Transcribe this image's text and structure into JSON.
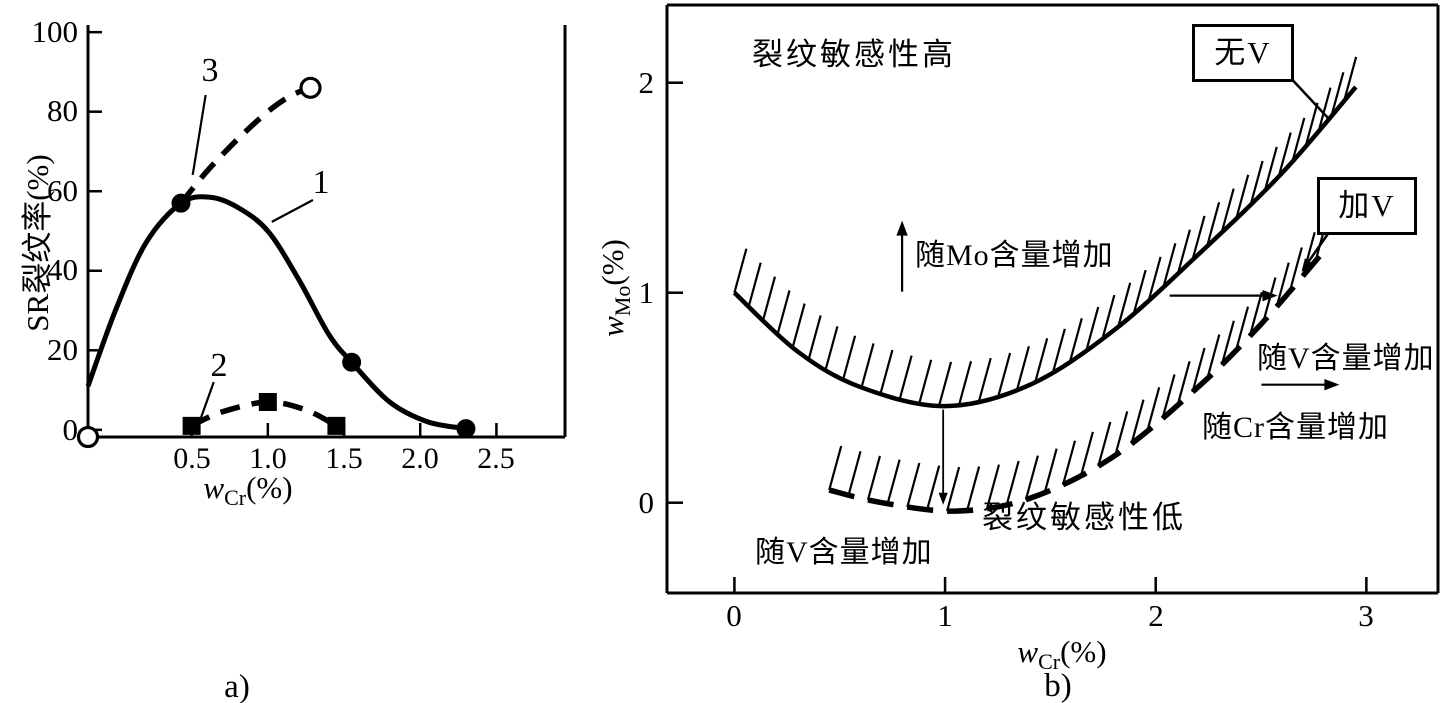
{
  "chart_a": {
    "y_axis_label": "SR裂纹率(%)",
    "x_label_var": "w",
    "x_label_sub": "Cr",
    "x_label_unit": "(%)",
    "caption": "a)",
    "y_ticks": [
      "100",
      "80",
      "60",
      "40",
      "20",
      "0"
    ],
    "x_ticks": [
      "0.5",
      "1.0",
      "1.5",
      "2.0",
      "2.5"
    ],
    "curve_label_1": "1",
    "curve_label_2": "2",
    "curve_label_3": "3"
  },
  "chart_b": {
    "y_label_var": "w",
    "y_label_sub": "Mo",
    "y_label_unit": "(%)",
    "x_label_var": "w",
    "x_label_sub": "Cr",
    "x_label_unit": "(%)",
    "caption": "b)",
    "y_ticks": [
      "2",
      "1",
      "0"
    ],
    "x_ticks": [
      "0",
      "1",
      "2",
      "3"
    ],
    "region_high": "裂纹敏感性高",
    "region_low": "裂纹敏感性低",
    "box_no_v": "无V",
    "box_with_v": "加V",
    "anno_mo": "随Mo含量增加",
    "anno_v_right": "随V含量增加",
    "anno_cr": "随Cr含量增加",
    "anno_v_bottom": "随V含量增加"
  },
  "chart_data": [
    {
      "type": "line",
      "title": "",
      "xlabel": "wCr(%)",
      "ylabel": "SR裂纹率(%)",
      "xlim": [
        -0.18,
        2.95
      ],
      "ylim": [
        -1.8,
        101.8
      ],
      "x_tick_values": [
        0.5,
        1.0,
        1.5,
        2.0,
        2.5
      ],
      "y_tick_values": [
        0,
        20,
        40,
        60,
        80,
        100
      ],
      "grid": false,
      "series": [
        {
          "id": "curve-1",
          "name": "1",
          "style": "solid",
          "hatch": false,
          "points": [
            [
              -0.18,
              11
            ],
            [
              0.0,
              30
            ],
            [
              0.2,
              47
            ],
            [
              0.43,
              57
            ],
            [
              0.62,
              58.5
            ],
            [
              0.8,
              56
            ],
            [
              1.0,
              50
            ],
            [
              1.2,
              38
            ],
            [
              1.4,
              24
            ],
            [
              1.55,
              17
            ],
            [
              1.8,
              7
            ],
            [
              2.05,
              2
            ],
            [
              2.3,
              0.3
            ]
          ],
          "markers": [
            {
              "x": 0.43,
              "y": 57,
              "type": "filled-circle"
            },
            {
              "x": 1.55,
              "y": 17,
              "type": "filled-circle"
            },
            {
              "x": 2.3,
              "y": 0.3,
              "type": "filled-circle"
            }
          ]
        },
        {
          "id": "curve-2",
          "name": "2",
          "style": "dashed",
          "hatch": false,
          "points": [
            [
              0.5,
              1
            ],
            [
              0.7,
              4.5
            ],
            [
              1.0,
              7
            ],
            [
              1.25,
              5
            ],
            [
              1.45,
              1
            ]
          ],
          "markers": [
            {
              "x": 0.5,
              "y": 1,
              "type": "filled-square"
            },
            {
              "x": 1.0,
              "y": 7,
              "type": "filled-square"
            },
            {
              "x": 1.45,
              "y": 1,
              "type": "filled-square"
            }
          ]
        },
        {
          "id": "curve-3",
          "name": "3",
          "style": "dashed",
          "hatch": false,
          "points": [
            [
              0.43,
              57
            ],
            [
              0.6,
              65
            ],
            [
              0.8,
              73
            ],
            [
              1.0,
              80
            ],
            [
              1.15,
              84
            ],
            [
              1.28,
              86
            ]
          ],
          "markers": [
            {
              "x": 1.28,
              "y": 86,
              "type": "open-circle"
            }
          ]
        }
      ],
      "extra_markers": [
        {
          "x": -0.18,
          "y": -1.8,
          "type": "open-circle"
        }
      ],
      "leader_lines": [
        {
          "label": "1",
          "from": [
            1.296,
            57.8
          ],
          "to": [
            1.026,
            52.3
          ],
          "arrow": false
        },
        {
          "label": "2",
          "from": [
            0.645,
            12.0
          ],
          "to": [
            0.559,
            2.8
          ],
          "arrow": false
        },
        {
          "label": "3",
          "from": [
            0.592,
            84.2
          ],
          "to": [
            0.507,
            64.1
          ],
          "arrow": false
        }
      ],
      "arrows": []
    },
    {
      "type": "line",
      "title": "",
      "xlabel": "wCr(%)",
      "ylabel": "wMo(%)",
      "xlim": [
        -0.32,
        3.34
      ],
      "ylim": [
        -0.43,
        2.37
      ],
      "x_tick_values": [
        0,
        1,
        2,
        3
      ],
      "y_tick_values": [
        0,
        1,
        2
      ],
      "grid": false,
      "series": [
        {
          "id": "curve-no-v",
          "name": "无V",
          "style": "solid",
          "hatch": true,
          "points": [
            [
              0,
              1.0
            ],
            [
              0.3,
              0.72
            ],
            [
              0.6,
              0.55
            ],
            [
              1.0,
              0.46
            ],
            [
              1.4,
              0.56
            ],
            [
              1.8,
              0.82
            ],
            [
              2.2,
              1.18
            ],
            [
              2.6,
              1.57
            ],
            [
              2.95,
              1.98
            ]
          ],
          "markers": []
        },
        {
          "id": "curve-with-v",
          "name": "加V",
          "style": "dashed",
          "hatch": true,
          "points": [
            [
              0.45,
              0.06
            ],
            [
              0.7,
              0.0
            ],
            [
              1.05,
              -0.04
            ],
            [
              1.4,
              0.02
            ],
            [
              1.8,
              0.22
            ],
            [
              2.2,
              0.55
            ],
            [
              2.5,
              0.85
            ],
            [
              2.8,
              1.2
            ]
          ],
          "markers": []
        }
      ],
      "extra_markers": [],
      "leader_lines": [
        {
          "label": "无V",
          "from": [
            2.614,
            2.051
          ],
          "to": [
            2.818,
            1.832
          ],
          "arrow": false
        },
        {
          "label": "加V",
          "from": [
            2.837,
            1.308
          ],
          "to": [
            2.692,
            1.1
          ],
          "arrow": true
        }
      ],
      "arrows": [
        {
          "name": "mo-increase-up",
          "from": [
            0.796,
            1.005
          ],
          "to": [
            0.796,
            1.343
          ],
          "thin": false
        },
        {
          "name": "v-shift-right",
          "from": [
            2.066,
            0.986
          ],
          "to": [
            2.578,
            0.986
          ],
          "thin": false
        },
        {
          "name": "no-v-to-with-v-down",
          "from": [
            0.991,
            0.443
          ],
          "to": [
            0.991,
            -0.01
          ],
          "thin": true
        },
        {
          "name": "v-increase-right",
          "from": [
            2.502,
            0.562
          ],
          "to": [
            2.872,
            0.562
          ],
          "thin": false
        }
      ]
    }
  ]
}
